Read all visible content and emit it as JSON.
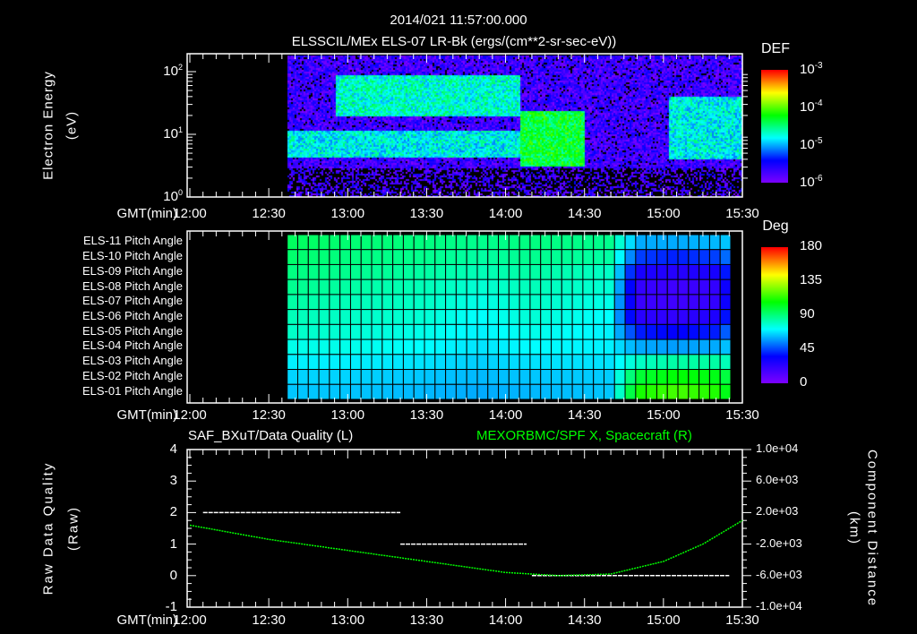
{
  "header": {
    "datetime": "2014/021 11:57:00.000",
    "title": "ELSSCIL/MEx ELS-07 LR-Bk  (ergs/(cm**2-sr-sec-eV))"
  },
  "chart_data": [
    {
      "type": "heatmap",
      "name": "electron-spectrogram",
      "title": "ELSSCIL/MEx ELS-07 LR-Bk  (ergs/(cm**2-sr-sec-eV))",
      "ylabel": "Electron Energy",
      "yunit": "(eV)",
      "xlabel": "GMT(min)",
      "xticks": [
        "12:00",
        "12:30",
        "13:00",
        "13:30",
        "14:00",
        "14:30",
        "15:00",
        "15:30"
      ],
      "yticks": [
        "10^0",
        "10^1",
        "10^2"
      ],
      "ylim": [
        1,
        190
      ],
      "xlim_min": [
        0,
        210
      ],
      "data_start_min": 37,
      "scale": "log",
      "colorbar": {
        "label": "DEF",
        "ticks": [
          "10^-3",
          "10^-4",
          "10^-5",
          "10^-6"
        ],
        "range_log": [
          -6.2,
          -3
        ]
      },
      "features": [
        {
          "t": [
            37,
            210
          ],
          "e": [
            1,
            190
          ],
          "logdef": -5.9
        },
        {
          "t": [
            37,
            125
          ],
          "e": [
            4.5,
            12
          ],
          "logdef": -4.9
        },
        {
          "t": [
            55,
            125
          ],
          "e": [
            20,
            90
          ],
          "logdef": -4.8
        },
        {
          "t": [
            125,
            150
          ],
          "e": [
            3.2,
            25
          ],
          "logdef": -4.4
        },
        {
          "t": [
            150,
            165
          ],
          "e": [
            1,
            190
          ],
          "logdef": -7
        },
        {
          "t": [
            182,
            210
          ],
          "e": [
            4,
            40
          ],
          "logdef": -4.9
        }
      ]
    },
    {
      "type": "heatmap",
      "name": "pitch-angle",
      "xlabel": "GMT(min)",
      "rows": [
        "ELS-11 Pitch Angle",
        "ELS-10 Pitch Angle",
        "ELS-09 Pitch Angle",
        "ELS-08 Pitch Angle",
        "ELS-07 Pitch Angle",
        "ELS-06 Pitch Angle",
        "ELS-05 Pitch Angle",
        "ELS-04 Pitch Angle",
        "ELS-03 Pitch Angle",
        "ELS-02 Pitch Angle",
        "ELS-01 Pitch Angle"
      ],
      "xticks": [
        "12:00",
        "12:30",
        "13:00",
        "13:30",
        "14:00",
        "14:30",
        "15:00",
        "15:30"
      ],
      "time_anchors_min": [
        37,
        60,
        90,
        110,
        130,
        160,
        170,
        185,
        200,
        206
      ],
      "values_deg": [
        [
          95,
          92,
          90,
          88,
          90,
          88,
          60,
          60,
          62,
          65
        ],
        [
          93,
          90,
          88,
          85,
          88,
          85,
          45,
          40,
          45,
          55
        ],
        [
          90,
          88,
          85,
          82,
          85,
          80,
          30,
          25,
          30,
          45
        ],
        [
          88,
          85,
          82,
          78,
          82,
          78,
          22,
          18,
          22,
          40
        ],
        [
          85,
          82,
          80,
          75,
          80,
          75,
          20,
          18,
          22,
          40
        ],
        [
          82,
          80,
          78,
          72,
          78,
          72,
          25,
          22,
          28,
          45
        ],
        [
          80,
          78,
          75,
          70,
          75,
          70,
          40,
          35,
          40,
          55
        ],
        [
          75,
          75,
          72,
          68,
          72,
          70,
          60,
          58,
          60,
          65
        ],
        [
          70,
          70,
          68,
          65,
          68,
          68,
          80,
          85,
          85,
          80
        ],
        [
          66,
          66,
          64,
          62,
          64,
          65,
          100,
          108,
          105,
          95
        ],
        [
          64,
          64,
          62,
          60,
          62,
          64,
          110,
          118,
          112,
          100
        ]
      ],
      "colorbar": {
        "label": "Deg",
        "ticks": [
          "180",
          "135",
          "90",
          "45",
          "0"
        ],
        "range": [
          0,
          180
        ]
      }
    },
    {
      "type": "line",
      "name": "data-quality-and-position",
      "title_left": "SAF_BXuT/Data Quality (L)",
      "title_right": "MEXORBMC/SPF X, Spacecraft (R)",
      "ylabel_left": [
        "Raw Data Quality",
        "(Raw)"
      ],
      "ylabel_right": [
        "Component Distance",
        "(km)"
      ],
      "xlabel": "GMT(min)",
      "xticks": [
        "12:00",
        "12:30",
        "13:00",
        "13:30",
        "14:00",
        "14:30",
        "15:00",
        "15:30"
      ],
      "yticks_left": [
        "4",
        "3",
        "2",
        "1",
        "0",
        "-1"
      ],
      "ylim_left": [
        -1,
        4
      ],
      "yticks_right": [
        "1.0e+04",
        "6.0e+03",
        "2.0e+03",
        "-2.0e+03",
        "-6.0e+03",
        "-1.0e+04"
      ],
      "ylim_right": [
        -10000,
        10000
      ],
      "quality_segments": [
        {
          "t": [
            5,
            80
          ],
          "v": 2
        },
        {
          "t": [
            80,
            128
          ],
          "v": 1
        },
        {
          "t": [
            130,
            205
          ],
          "v": 0
        }
      ],
      "position": {
        "t": [
          0,
          30,
          60,
          90,
          120,
          140,
          160,
          180,
          195,
          210
        ],
        "x_km": [
          400,
          -1400,
          -2800,
          -4200,
          -5600,
          -6000,
          -5800,
          -4200,
          -2000,
          1000
        ]
      },
      "colors": {
        "quality": "#ffffff",
        "position": "#00ff00"
      }
    }
  ]
}
